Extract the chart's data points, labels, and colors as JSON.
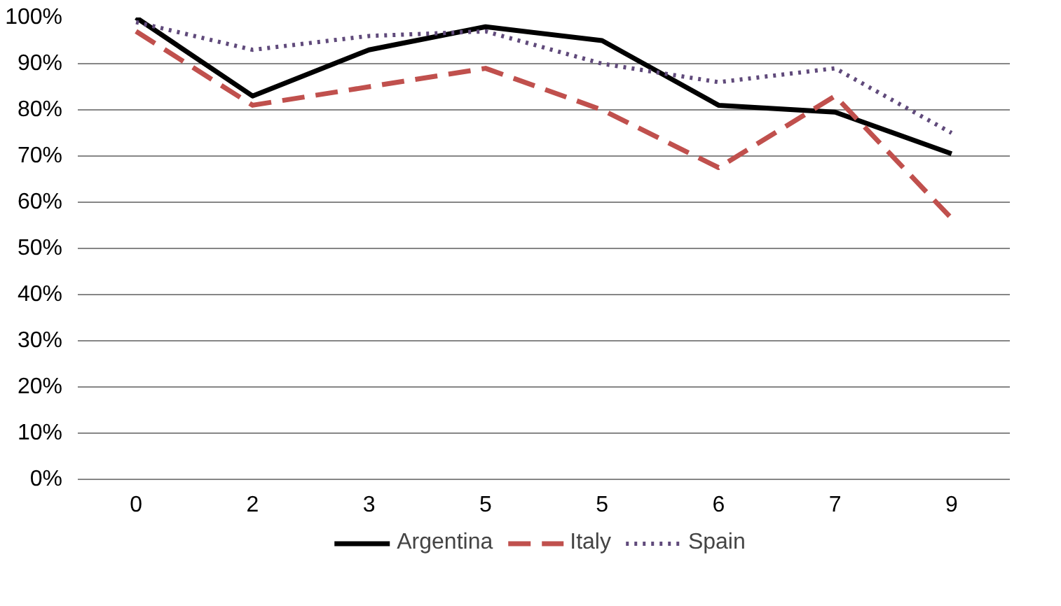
{
  "chart_data": {
    "type": "line",
    "categories": [
      "0",
      "2",
      "3",
      "5",
      "5",
      "6",
      "7",
      "9"
    ],
    "series": [
      {
        "name": "Argentina",
        "color": "#000000",
        "line_style": "solid",
        "values": [
          100,
          83,
          93,
          98,
          95,
          81,
          79.5,
          70.5
        ]
      },
      {
        "name": "Italy",
        "color": "#c0504d",
        "line_style": "dashed",
        "values": [
          97,
          81,
          85,
          89,
          80,
          67.5,
          83,
          56.5
        ]
      },
      {
        "name": "Spain",
        "color": "#604a7b",
        "line_style": "dotted",
        "values": [
          99,
          93,
          96,
          97,
          90,
          86,
          89,
          75
        ]
      }
    ],
    "ylim": [
      0,
      100
    ],
    "yticks": [
      {
        "value": 0,
        "label": "0%"
      },
      {
        "value": 10,
        "label": "10%"
      },
      {
        "value": 20,
        "label": "20%"
      },
      {
        "value": 30,
        "label": "30%"
      },
      {
        "value": 40,
        "label": "40%"
      },
      {
        "value": 50,
        "label": "50%"
      },
      {
        "value": 60,
        "label": "60%"
      },
      {
        "value": 70,
        "label": "70%"
      },
      {
        "value": 80,
        "label": "80%"
      },
      {
        "value": 90,
        "label": "90%"
      },
      {
        "value": 100,
        "label": "100%"
      }
    ],
    "grid": "y",
    "legend": "bottom",
    "marker": "none"
  }
}
